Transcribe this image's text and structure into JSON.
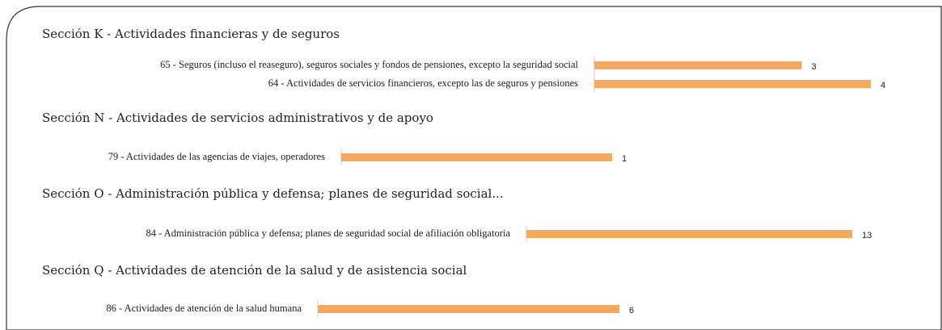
{
  "chart_data": [
    {
      "type": "bar",
      "title": "Sección K - Actividades financieras y de seguros",
      "categories": [
        "65 - Seguros (incluso el reaseguro), seguros sociales y fondos de pensiones, excepto la seguridad social",
        "64 - Actividades de servicios financieros, excepto las de seguros y pensiones"
      ],
      "values": [
        3,
        4
      ],
      "color": "#f6a85e"
    },
    {
      "type": "bar",
      "title": "Sección N - Actividades de servicios administrativos y de apoyo",
      "categories": [
        "79 - Actividades de las agencias de viajes, operadores"
      ],
      "values": [
        1
      ],
      "color": "#f6a85e"
    },
    {
      "type": "bar",
      "title": "Sección O - Administración pública y defensa; planes de seguridad social...",
      "categories": [
        "84 - Administración pública y defensa; planes de seguridad social de afiliación obligatoria"
      ],
      "values": [
        13
      ],
      "color": "#f6a85e"
    },
    {
      "type": "bar",
      "title": "Sección Q - Actividades de atención de la salud y de asistencia social",
      "categories": [
        "86 - Actividades de atención de la salud humana"
      ],
      "values": [
        6
      ],
      "color": "#f6a85e"
    }
  ]
}
